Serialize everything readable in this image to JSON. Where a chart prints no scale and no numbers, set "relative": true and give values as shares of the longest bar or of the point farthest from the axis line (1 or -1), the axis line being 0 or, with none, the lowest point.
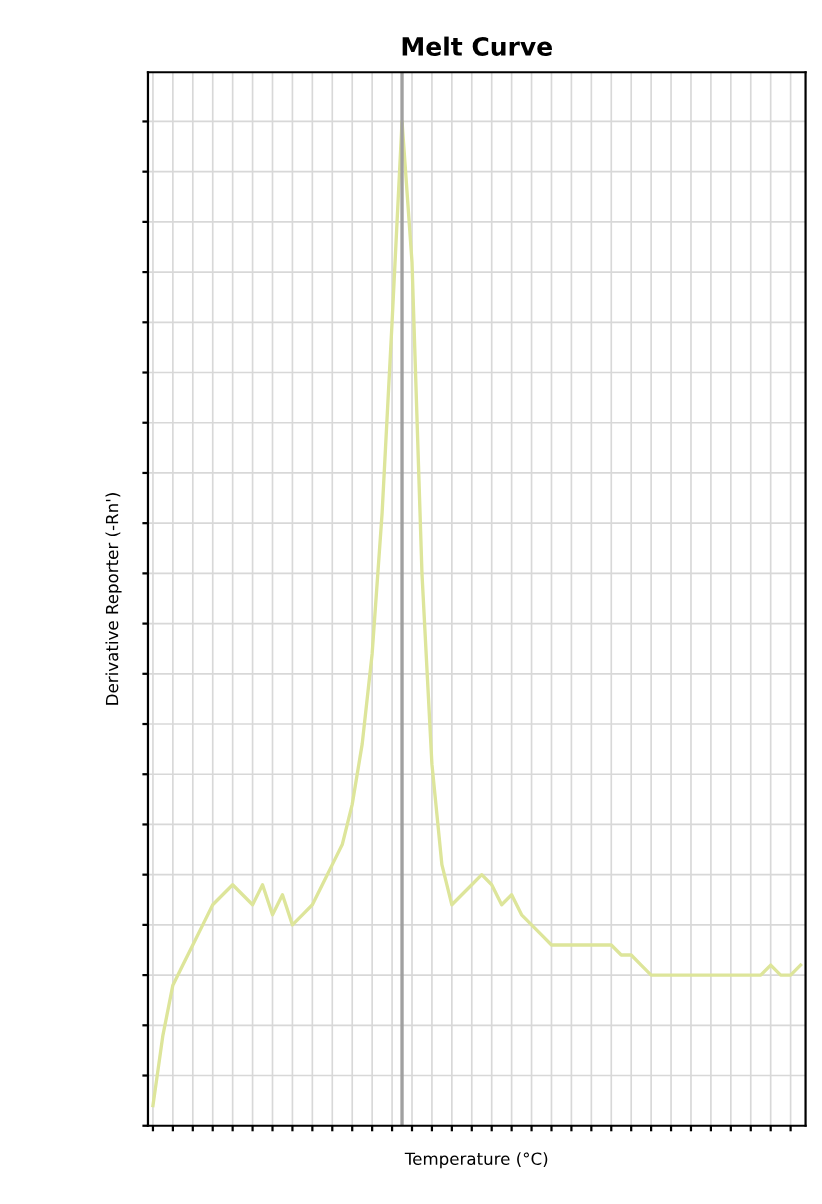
{
  "chart_data": {
    "type": "line",
    "title": "Melt Curve",
    "xlabel": "Temperature (°C)",
    "ylabel": "Derivative Reporter (-Rn')",
    "categories": [
      null,
      null,
      null,
      null,
      null,
      null,
      null,
      null,
      null,
      null,
      null,
      null,
      null,
      null,
      null,
      null,
      null,
      null,
      null,
      null,
      null,
      null,
      null,
      null,
      null,
      null,
      null,
      null,
      null,
      null,
      null,
      null,
      null,
      null,
      null,
      null,
      null,
      null,
      null,
      null,
      null,
      null,
      null,
      null,
      null,
      null,
      null,
      null,
      null,
      null,
      null,
      null,
      null,
      null,
      null,
      null,
      null,
      null,
      null,
      null,
      null,
      null,
      null,
      null,
      null,
      null
    ],
    "series": [
      {
        "color": "#dde59a",
        "values": [
          0.02,
          0.09,
          0.14,
          0.16,
          0.18,
          0.2,
          0.22,
          0.23,
          0.24,
          0.23,
          0.22,
          0.24,
          0.21,
          0.23,
          0.2,
          0.21,
          0.22,
          0.24,
          0.26,
          0.28,
          0.32,
          0.38,
          0.47,
          0.61,
          0.8,
          1.0,
          0.86,
          0.55,
          0.36,
          0.26,
          0.22,
          0.23,
          0.24,
          0.25,
          0.24,
          0.22,
          0.23,
          0.21,
          0.2,
          0.19,
          0.18,
          0.18,
          0.18,
          0.18,
          0.18,
          0.18,
          0.18,
          0.17,
          0.17,
          0.16,
          0.15,
          0.15,
          0.15,
          0.15,
          0.15,
          0.15,
          0.15,
          0.15,
          0.15,
          0.15,
          0.15,
          0.15,
          0.16,
          0.15,
          0.15,
          0.16
        ]
      }
    ],
    "relative": true,
    "grid": true
  }
}
